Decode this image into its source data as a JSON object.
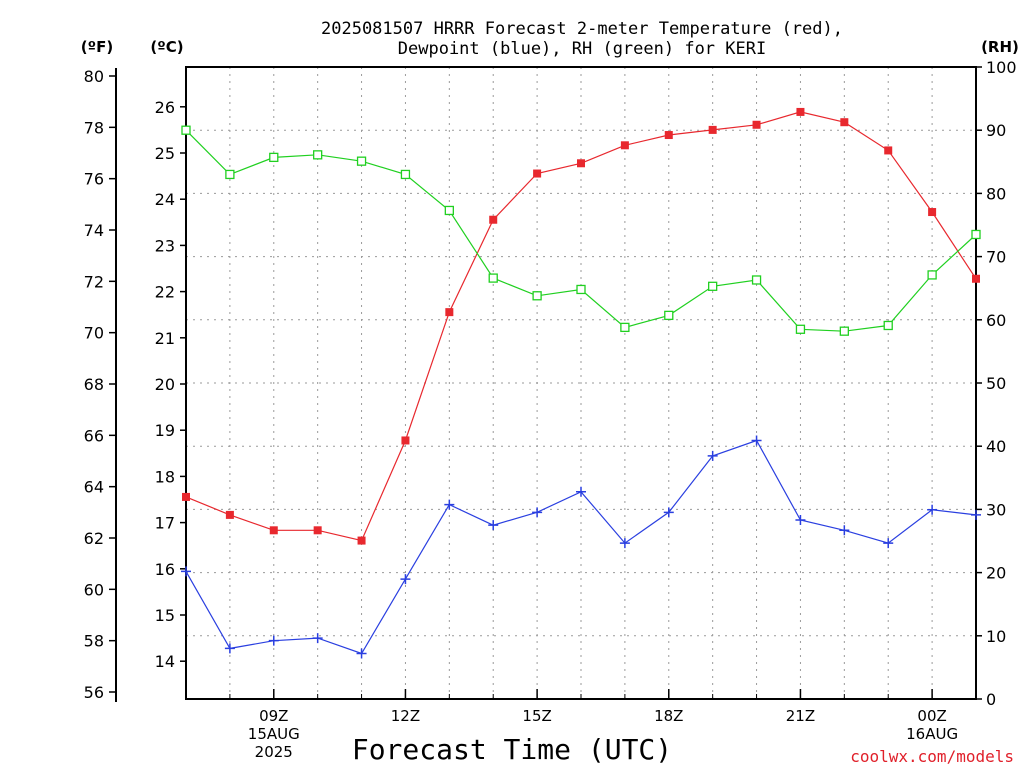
{
  "chart_data": {
    "type": "line",
    "title_line1": "2025081507 HRRR Forecast 2-meter Temperature (red),",
    "title_line2": "Dewpoint (blue), RH (green) for KERI",
    "xlabel": "Forecast Time (UTC)",
    "credit": "coolwx.com/models",
    "left_axis_f": {
      "label": "(ºF)",
      "range": [
        56,
        80
      ],
      "ticks": [
        56,
        58,
        60,
        62,
        64,
        66,
        68,
        70,
        72,
        74,
        76,
        78,
        80
      ]
    },
    "left_axis_c": {
      "label": "(ºC)",
      "ticks": [
        14,
        15,
        16,
        17,
        18,
        19,
        20,
        21,
        22,
        23,
        24,
        25,
        26
      ]
    },
    "right_axis": {
      "label": "(RH)",
      "range": [
        0,
        100
      ],
      "ticks": [
        0,
        10,
        20,
        30,
        40,
        50,
        60,
        70,
        80,
        90,
        100
      ]
    },
    "grid": true,
    "x_hours": [
      7,
      25
    ],
    "x_ticks": [
      {
        "hour": 9,
        "lines": [
          "09Z",
          "15AUG",
          "2025"
        ]
      },
      {
        "hour": 12,
        "lines": [
          "12Z"
        ]
      },
      {
        "hour": 15,
        "lines": [
          "15Z"
        ]
      },
      {
        "hour": 18,
        "lines": [
          "18Z"
        ]
      },
      {
        "hour": 21,
        "lines": [
          "21Z"
        ]
      },
      {
        "hour": 24,
        "lines": [
          "00Z",
          "16AUG"
        ]
      }
    ],
    "series": [
      {
        "key": "temperature",
        "units": "F",
        "color": "#e8282e",
        "marker": "filled-square",
        "points": [
          [
            7,
            63.6
          ],
          [
            8,
            62.9
          ],
          [
            9,
            62.3
          ],
          [
            10,
            62.3
          ],
          [
            11,
            61.9
          ],
          [
            12,
            65.8
          ],
          [
            13,
            70.8
          ],
          [
            14,
            74.4
          ],
          [
            15,
            76.2
          ],
          [
            16,
            76.6
          ],
          [
            17,
            77.3
          ],
          [
            18,
            77.7
          ],
          [
            19,
            77.9
          ],
          [
            20,
            78.1
          ],
          [
            21,
            78.6
          ],
          [
            22,
            78.2
          ],
          [
            23,
            77.1
          ],
          [
            24,
            74.7
          ],
          [
            25,
            72.1
          ]
        ]
      },
      {
        "key": "dewpoint",
        "units": "F",
        "color": "#2a3fe0",
        "marker": "plus",
        "points": [
          [
            7,
            60.7
          ],
          [
            8,
            57.7
          ],
          [
            9,
            58.0
          ],
          [
            10,
            58.1
          ],
          [
            11,
            57.5
          ],
          [
            12,
            60.4
          ],
          [
            13,
            63.3
          ],
          [
            14,
            62.5
          ],
          [
            15,
            63.0
          ],
          [
            16,
            63.8
          ],
          [
            17,
            61.8
          ],
          [
            18,
            63.0
          ],
          [
            19,
            65.2
          ],
          [
            20,
            65.8
          ],
          [
            21,
            62.7
          ],
          [
            22,
            62.3
          ],
          [
            23,
            61.8
          ],
          [
            24,
            63.1
          ],
          [
            25,
            62.9
          ]
        ]
      },
      {
        "key": "rh",
        "units": "%",
        "color": "#20d020",
        "marker": "open-square",
        "points": [
          [
            7,
            90.0
          ],
          [
            8,
            83.0
          ],
          [
            9,
            85.7
          ],
          [
            10,
            86.1
          ],
          [
            11,
            85.1
          ],
          [
            12,
            83.0
          ],
          [
            13,
            77.3
          ],
          [
            14,
            66.6
          ],
          [
            15,
            63.8
          ],
          [
            16,
            64.8
          ],
          [
            17,
            58.8
          ],
          [
            18,
            60.7
          ],
          [
            19,
            65.3
          ],
          [
            20,
            66.3
          ],
          [
            21,
            58.5
          ],
          [
            22,
            58.2
          ],
          [
            23,
            59.1
          ],
          [
            24,
            67.1
          ],
          [
            25,
            73.5
          ]
        ]
      }
    ]
  }
}
